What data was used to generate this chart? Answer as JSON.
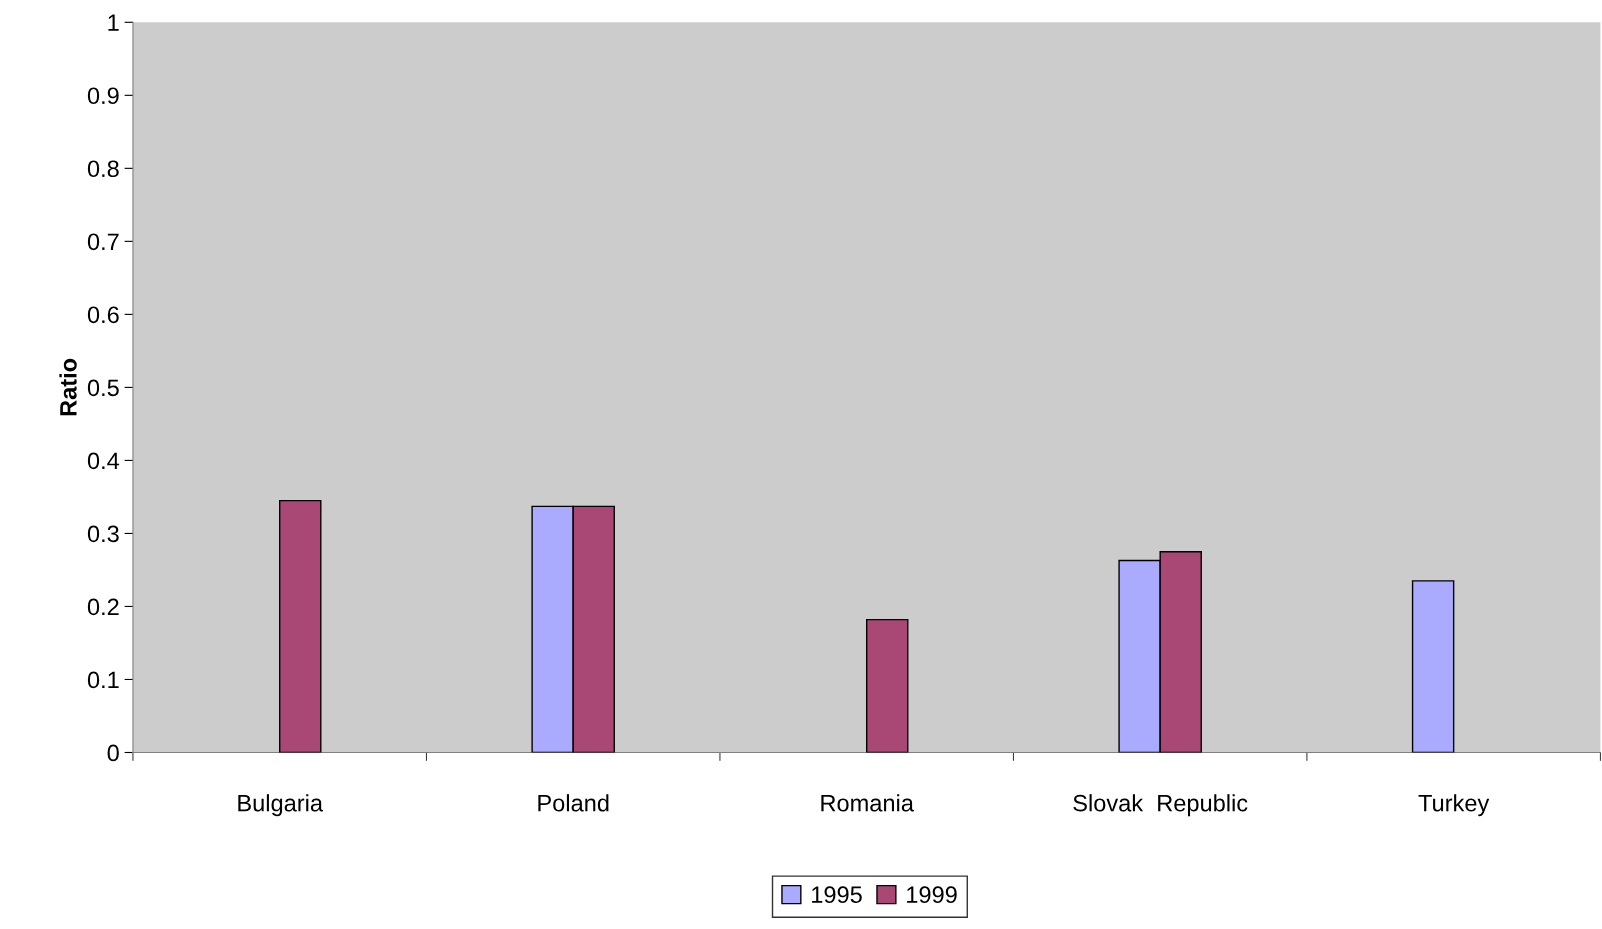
{
  "chart_data": {
    "type": "bar",
    "ylabel": "Ratio",
    "categories": [
      "Bulgaria",
      "Poland",
      "Romania",
      "Slovak  Republic",
      "Turkey"
    ],
    "series": [
      {
        "name": "1995",
        "color": "#aaaaff",
        "values": [
          null,
          0.337,
          null,
          0.263,
          0.235
        ]
      },
      {
        "name": "1999",
        "color": "#a94874",
        "values": [
          0.345,
          0.337,
          0.182,
          0.275,
          null
        ]
      }
    ],
    "ylim": [
      0,
      1
    ],
    "yticks": [
      0,
      0.1,
      0.2,
      0.3,
      0.4,
      0.5,
      0.6,
      0.7,
      0.8,
      0.9,
      1
    ],
    "grid": false,
    "legend": "bottom"
  }
}
